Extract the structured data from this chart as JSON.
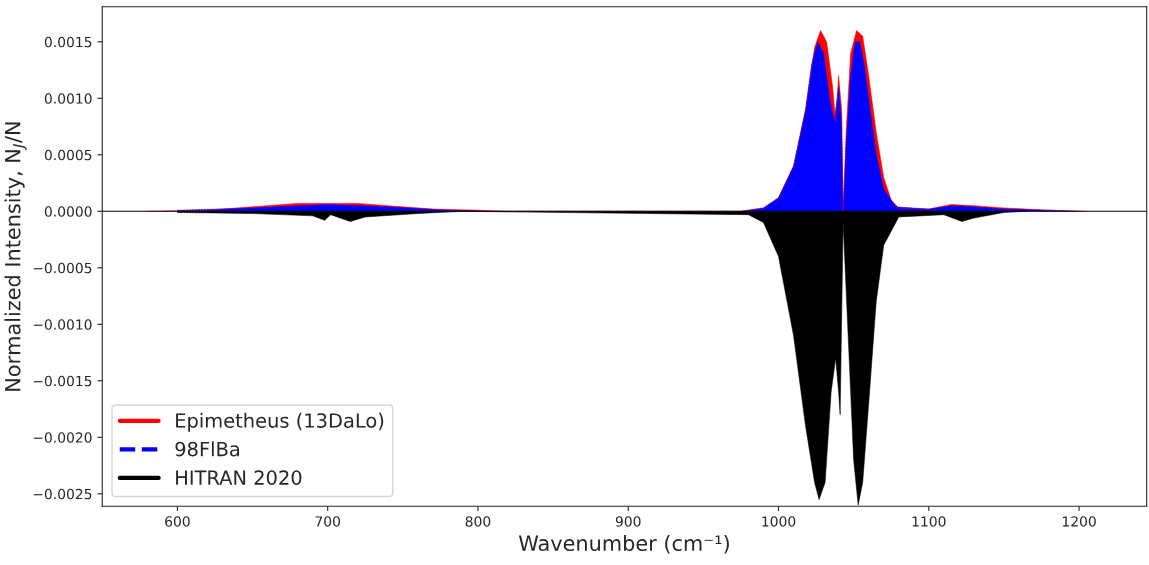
{
  "chart_data": {
    "type": "area",
    "xlabel": "Wavenumber (cm⁻¹)",
    "ylabel": "Normalized Intensity, N$_{J}$/N",
    "xlim": [
      550,
      1245
    ],
    "ylim": [
      -0.00261,
      0.00181
    ],
    "xticks": [
      600,
      700,
      800,
      900,
      1000,
      1100,
      1200
    ],
    "yticks": [
      {
        "value": -0.0025,
        "label": "−0.0025"
      },
      {
        "value": -0.002,
        "label": "−0.0020"
      },
      {
        "value": -0.0015,
        "label": "−0.0015"
      },
      {
        "value": -0.001,
        "label": "−0.0010"
      },
      {
        "value": -0.0005,
        "label": "−0.0005"
      },
      {
        "value": 0,
        "label": "0.0000"
      },
      {
        "value": 0.0005,
        "label": "0.0005"
      },
      {
        "value": 0.001,
        "label": "0.0010"
      },
      {
        "value": 0.0015,
        "label": "0.0015"
      }
    ],
    "grid": false,
    "legend": "bottom left",
    "ref_lines": [
      {
        "axis": "y",
        "value": 0,
        "color": "#000000"
      }
    ],
    "series": [
      {
        "name": "Epimetheus (13DaLo)",
        "color": "#ff0000",
        "line_style": "solid",
        "x": [
          580,
          620,
          650,
          680,
          700,
          720,
          740,
          770,
          800,
          820,
          975,
          990,
          1000,
          1010,
          1018,
          1024,
          1028,
          1032,
          1036,
          1038,
          1040,
          1042,
          1043,
          1045,
          1048,
          1052,
          1056,
          1060,
          1065,
          1070,
          1075,
          1080,
          1100,
          1115,
          1130,
          1150,
          1180,
          1205
        ],
        "values": [
          0,
          1e-05,
          4e-05,
          7e-05,
          7e-05,
          7e-05,
          5e-05,
          2e-05,
          1e-05,
          0,
          0,
          3e-05,
          0.00012,
          0.0004,
          0.0009,
          0.00145,
          0.0016,
          0.0015,
          0.0011,
          0.0008,
          0.0012,
          0.0009,
          0,
          0.0007,
          0.0014,
          0.0016,
          0.00155,
          0.0012,
          0.0007,
          0.0003,
          0.0001,
          3e-05,
          2e-05,
          6e-05,
          5e-05,
          3e-05,
          1e-05,
          0
        ]
      },
      {
        "name": "98FlBa",
        "color": "#0000ff",
        "line_style": "dashed",
        "x": [
          600,
          650,
          700,
          740,
          780,
          810,
          975,
          990,
          1000,
          1010,
          1018,
          1022,
          1026,
          1030,
          1034,
          1037,
          1040,
          1042,
          1043,
          1045,
          1048,
          1051,
          1054,
          1057,
          1060,
          1065,
          1070,
          1078,
          1100,
          1115,
          1130,
          1150,
          1180,
          1200
        ],
        "values": [
          1e-05,
          3e-05,
          6e-05,
          4e-05,
          1e-05,
          0,
          0,
          3e-05,
          0.00012,
          0.0004,
          0.0009,
          0.0013,
          0.0015,
          0.0014,
          0.001,
          0.0008,
          0.0011,
          0.0008,
          0,
          0.0006,
          0.0012,
          0.0015,
          0.0015,
          0.0013,
          0.001,
          0.0005,
          0.0002,
          4e-05,
          2e-05,
          5e-05,
          4e-05,
          2e-05,
          1e-05,
          0
        ]
      },
      {
        "name": "HITRAN 2020",
        "color": "#000000",
        "line_style": "solid",
        "x": [
          600,
          650,
          690,
          698,
          702,
          715,
          725,
          760,
          790,
          980,
          990,
          1000,
          1010,
          1018,
          1024,
          1027,
          1031,
          1035,
          1038,
          1040,
          1041,
          1043,
          1046,
          1050,
          1053,
          1056,
          1060,
          1065,
          1070,
          1080,
          1110,
          1122,
          1130,
          1150,
          1165
        ],
        "values": [
          -1e-05,
          -2e-05,
          -4e-05,
          -8e-05,
          -3e-05,
          -9e-05,
          -5e-05,
          -2e-05,
          0,
          -3e-05,
          -0.0001,
          -0.0004,
          -0.0011,
          -0.0019,
          -0.0024,
          -0.00255,
          -0.0024,
          -0.0016,
          -0.0013,
          -0.0016,
          -0.0018,
          -0.0001,
          -0.001,
          -0.0022,
          -0.0026,
          -0.0024,
          -0.0017,
          -0.0008,
          -0.0003,
          -5e-05,
          -3e-05,
          -9e-05,
          -6e-05,
          -1e-05,
          0
        ]
      }
    ]
  }
}
